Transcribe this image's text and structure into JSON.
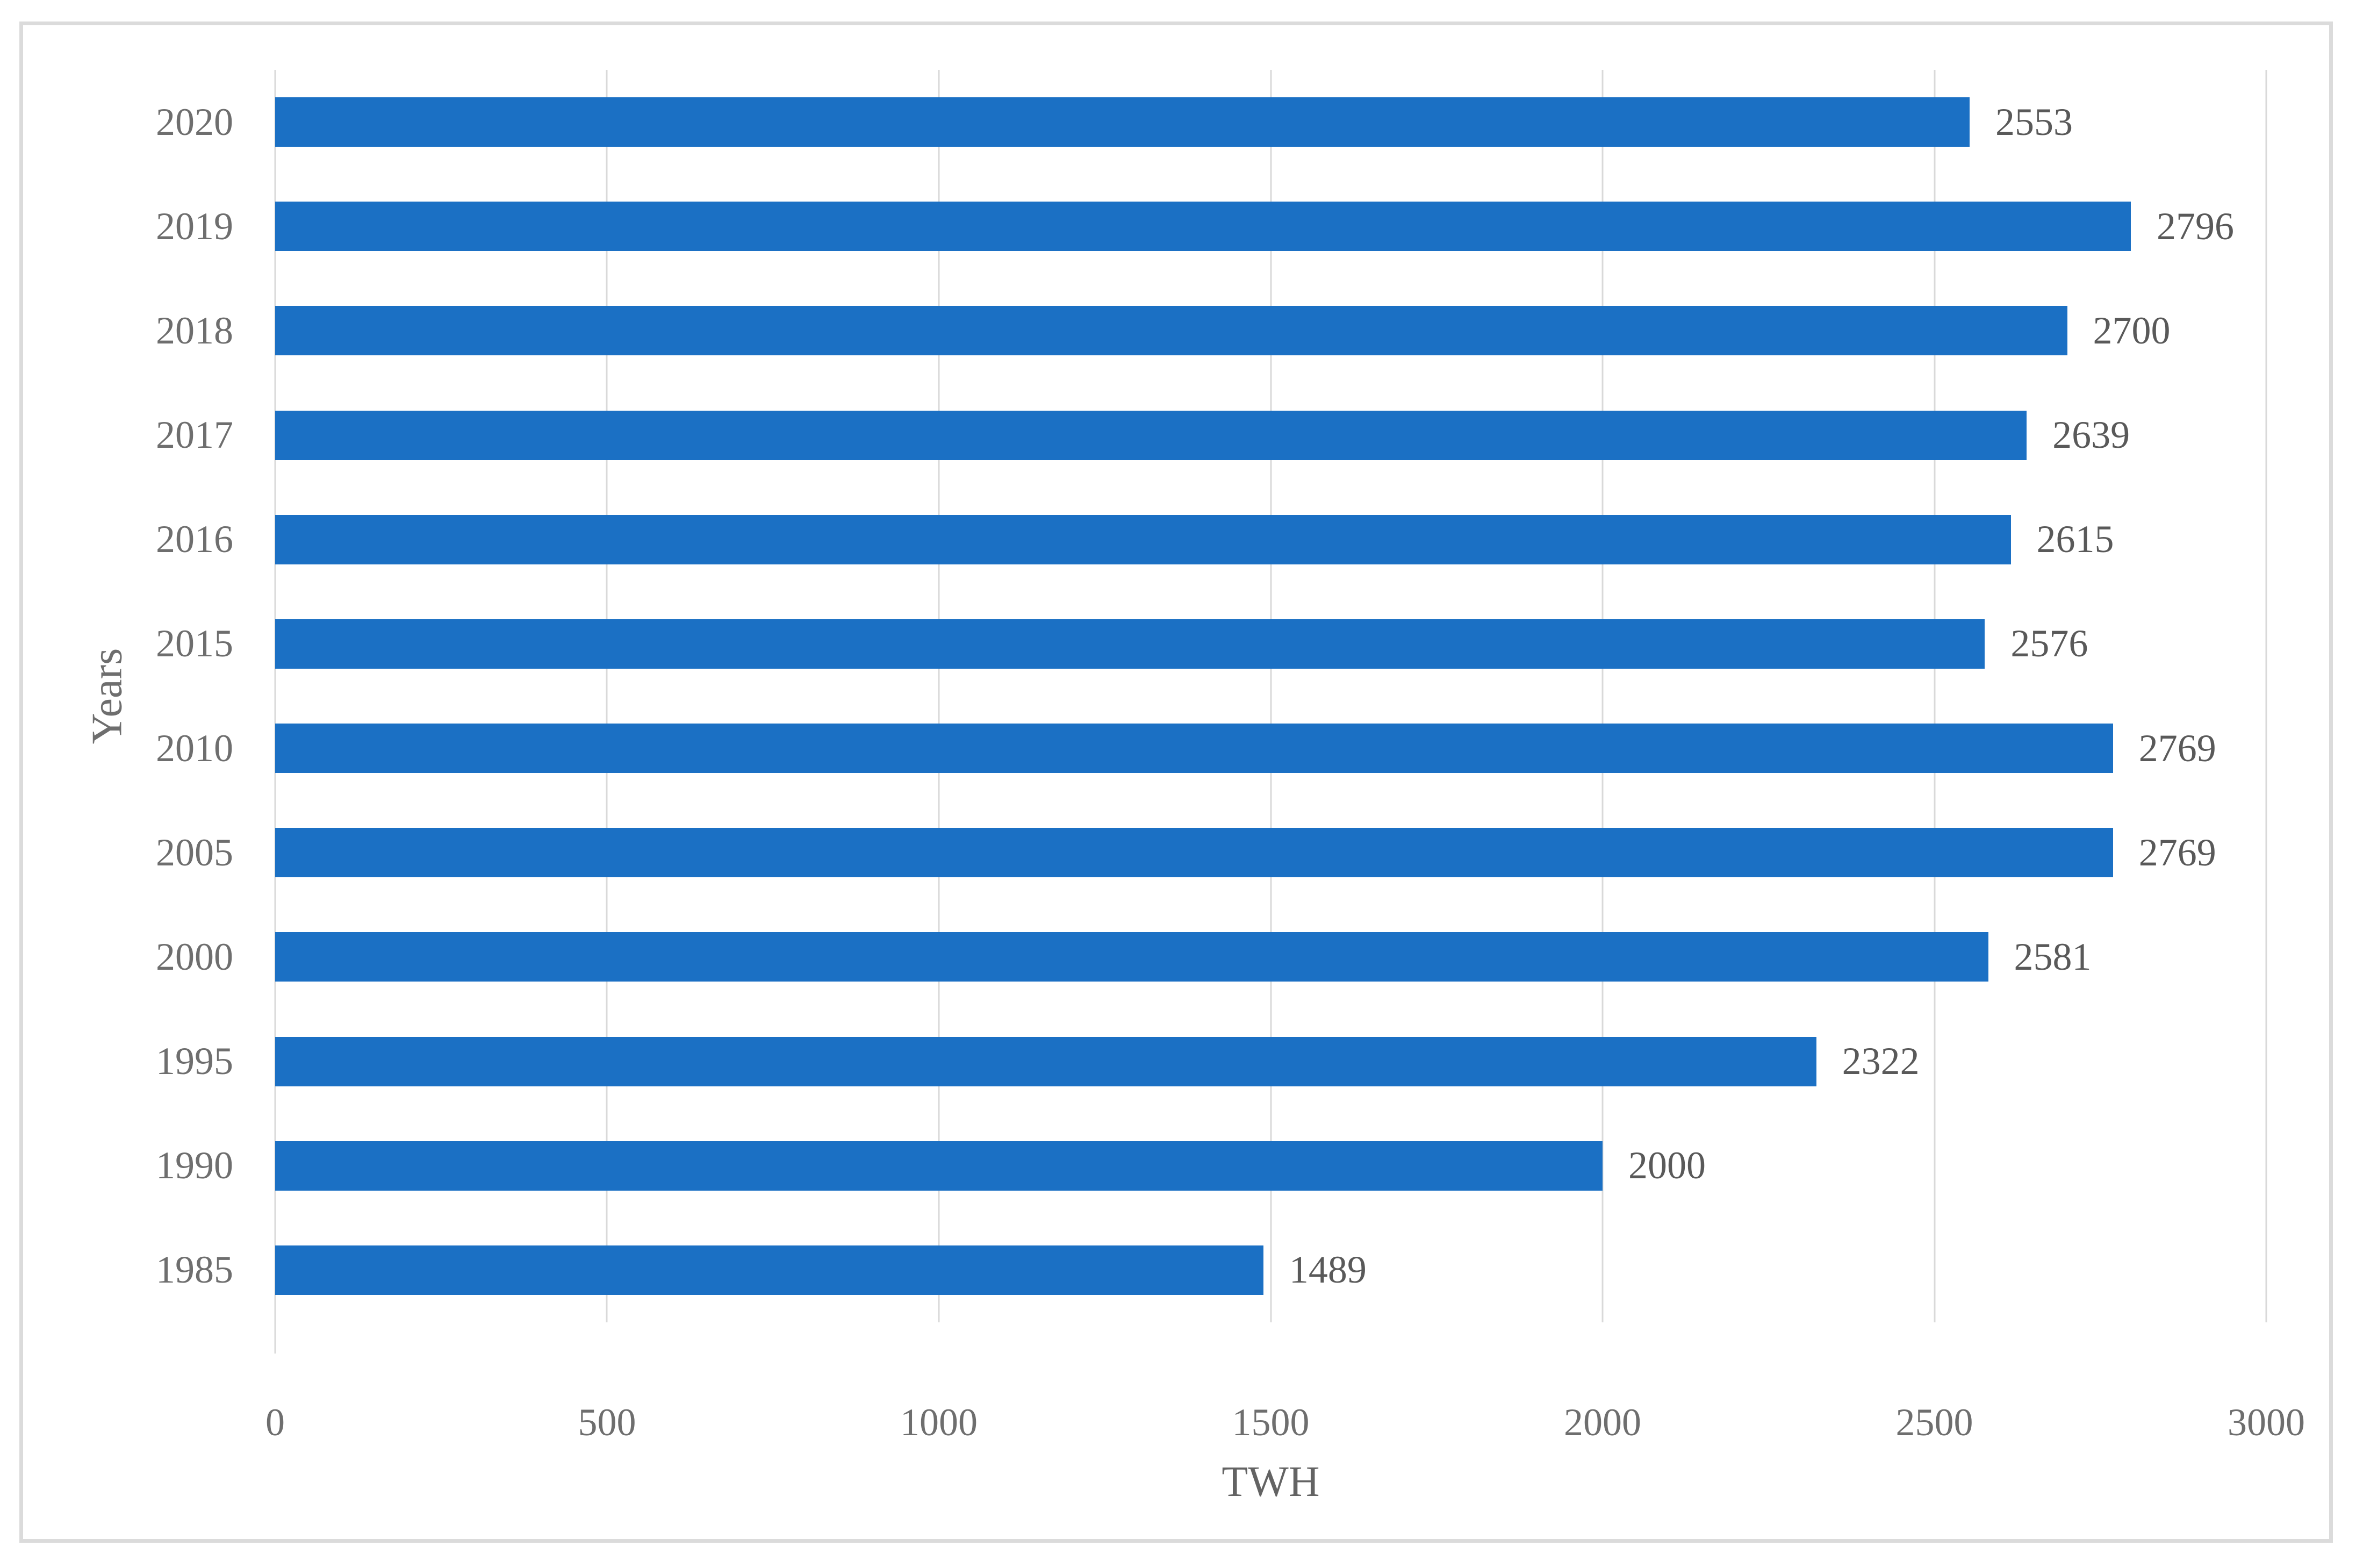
{
  "chart_data": {
    "type": "bar",
    "orientation": "horizontal",
    "categories": [
      "2020",
      "2019",
      "2018",
      "2017",
      "2016",
      "2015",
      "2010",
      "2005",
      "2000",
      "1995",
      "1990",
      "1985"
    ],
    "values": [
      2553,
      2796,
      2700,
      2639,
      2615,
      2576,
      2769,
      2769,
      2581,
      2322,
      2000,
      1489
    ],
    "data_labels": [
      "2553",
      "2796",
      "2700",
      "2639",
      "2615",
      "2576",
      "2769",
      "2769",
      "2581",
      "2322",
      "2000",
      "1489"
    ],
    "title": "",
    "xlabel": "TWH",
    "ylabel": "Years",
    "xlim": [
      0,
      3000
    ],
    "xticks": [
      0,
      500,
      1000,
      1500,
      2000,
      2500,
      3000
    ],
    "grid": "vertical-gridlines-on",
    "legend": "none",
    "bar_color": "#1b70c4",
    "label_color": "#595959",
    "tick_color": "#6e6e6e",
    "gridline_color": "#d9d9d9",
    "border_color": "#dbdbdb"
  }
}
